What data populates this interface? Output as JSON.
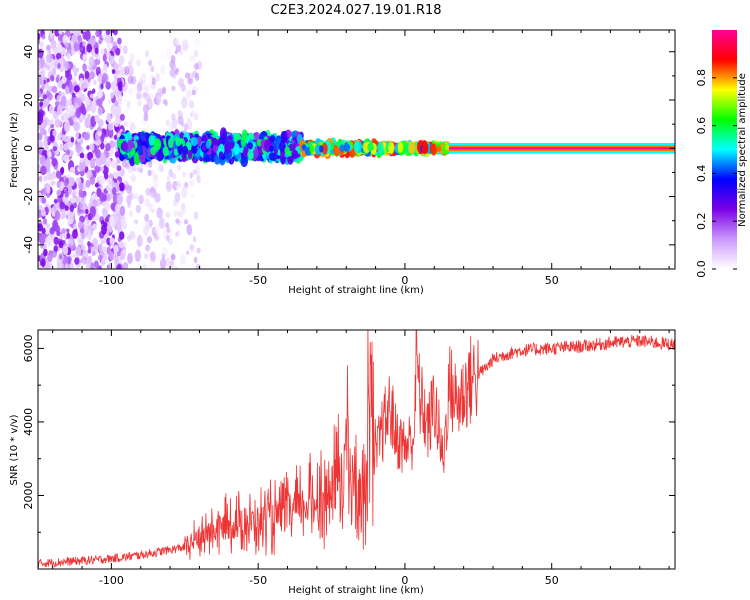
{
  "title": "C2E3.2024.027.19.01.R18",
  "chart_data": [
    {
      "type": "heatmap",
      "xlabel": "Height of straight line (km)",
      "ylabel": "Frequency (Hz)",
      "xlim": [
        -125,
        92
      ],
      "ylim": [
        -50,
        49
      ],
      "x_ticks": [
        -100,
        -50,
        0,
        50
      ],
      "y_ticks": [
        -40,
        -20,
        0,
        20,
        40
      ],
      "x_tick_labels": [
        "-100",
        "-50",
        "0",
        "50"
      ],
      "y_tick_labels": [
        "-40",
        "-20",
        "0",
        "20",
        "40"
      ],
      "colorbar": {
        "label": "Normalized spectral amplitude",
        "range": [
          0,
          1
        ],
        "ticks": [
          0.0,
          0.2,
          0.4,
          0.6,
          0.8
        ],
        "tick_labels": [
          "0.0",
          "0.2",
          "0.4",
          "0.6",
          "0.8"
        ],
        "colormap": [
          "#ffffff",
          "#cc99ff",
          "#7a00e6",
          "#0000ff",
          "#00ffff",
          "#00ff00",
          "#ffff00",
          "#ff0000",
          "#ff0099"
        ]
      },
      "regions": [
        {
          "x_range": [
            -125,
            -96
          ],
          "f_range": [
            -50,
            49
          ],
          "amplitude": [
            0.05,
            0.25
          ],
          "pattern": "scattered noise"
        },
        {
          "x_range": [
            -96,
            -70
          ],
          "f_range": [
            -50,
            45
          ],
          "amplitude": [
            0.0,
            0.15
          ],
          "pattern": "sparse faint noise"
        },
        {
          "x_range": [
            -97,
            -35
          ],
          "f_range": [
            -6,
            7
          ],
          "amplitude": [
            0.2,
            0.6
          ],
          "pattern": "broadened line"
        },
        {
          "x_range": [
            -35,
            15
          ],
          "f_range": [
            -3,
            3
          ],
          "amplitude": [
            0.4,
            0.9
          ],
          "pattern": "narrowing line"
        },
        {
          "x_range": [
            15,
            92
          ],
          "f_range": [
            -1,
            1
          ],
          "amplitude": [
            0.9,
            1.0
          ],
          "pattern": "single narrow tone"
        }
      ]
    },
    {
      "type": "line",
      "xlabel": "Height of straight line (km)",
      "ylabel": "SNR (10 * v/v)",
      "xlim": [
        -125,
        92
      ],
      "ylim": [
        0,
        6500
      ],
      "x_ticks": [
        -100,
        -50,
        0,
        50
      ],
      "y_ticks": [
        2000,
        4000,
        6000
      ],
      "x_tick_labels": [
        "-100",
        "-50",
        "0",
        "50"
      ],
      "y_tick_labels": [
        "2000",
        "4000",
        "6000"
      ],
      "color": "#ee3333",
      "series": [
        {
          "x": [
            -125,
            -115,
            -105,
            -98,
            -90,
            -80,
            -75,
            -70,
            -65,
            -60,
            -55,
            -50,
            -45,
            -40,
            -35,
            -30,
            -25,
            -22,
            -20,
            -18,
            -15,
            -13,
            -12,
            -10,
            -8,
            -5,
            -3,
            0,
            3,
            4,
            5,
            8,
            10,
            13,
            15,
            18,
            20,
            22,
            25,
            28,
            30,
            35,
            40,
            50,
            60,
            70,
            80,
            92
          ],
          "y": [
            150,
            200,
            250,
            300,
            380,
            520,
            600,
            850,
            1050,
            1200,
            1250,
            1300,
            1400,
            1500,
            1700,
            1900,
            2100,
            2600,
            3400,
            2400,
            2000,
            2500,
            6350,
            3000,
            3700,
            4400,
            3600,
            3300,
            3600,
            5800,
            4700,
            3800,
            4600,
            2900,
            5000,
            4500,
            4800,
            5100,
            5300,
            5500,
            5700,
            5850,
            5950,
            6000,
            6050,
            6150,
            6200,
            6100
          ]
        }
      ]
    }
  ]
}
